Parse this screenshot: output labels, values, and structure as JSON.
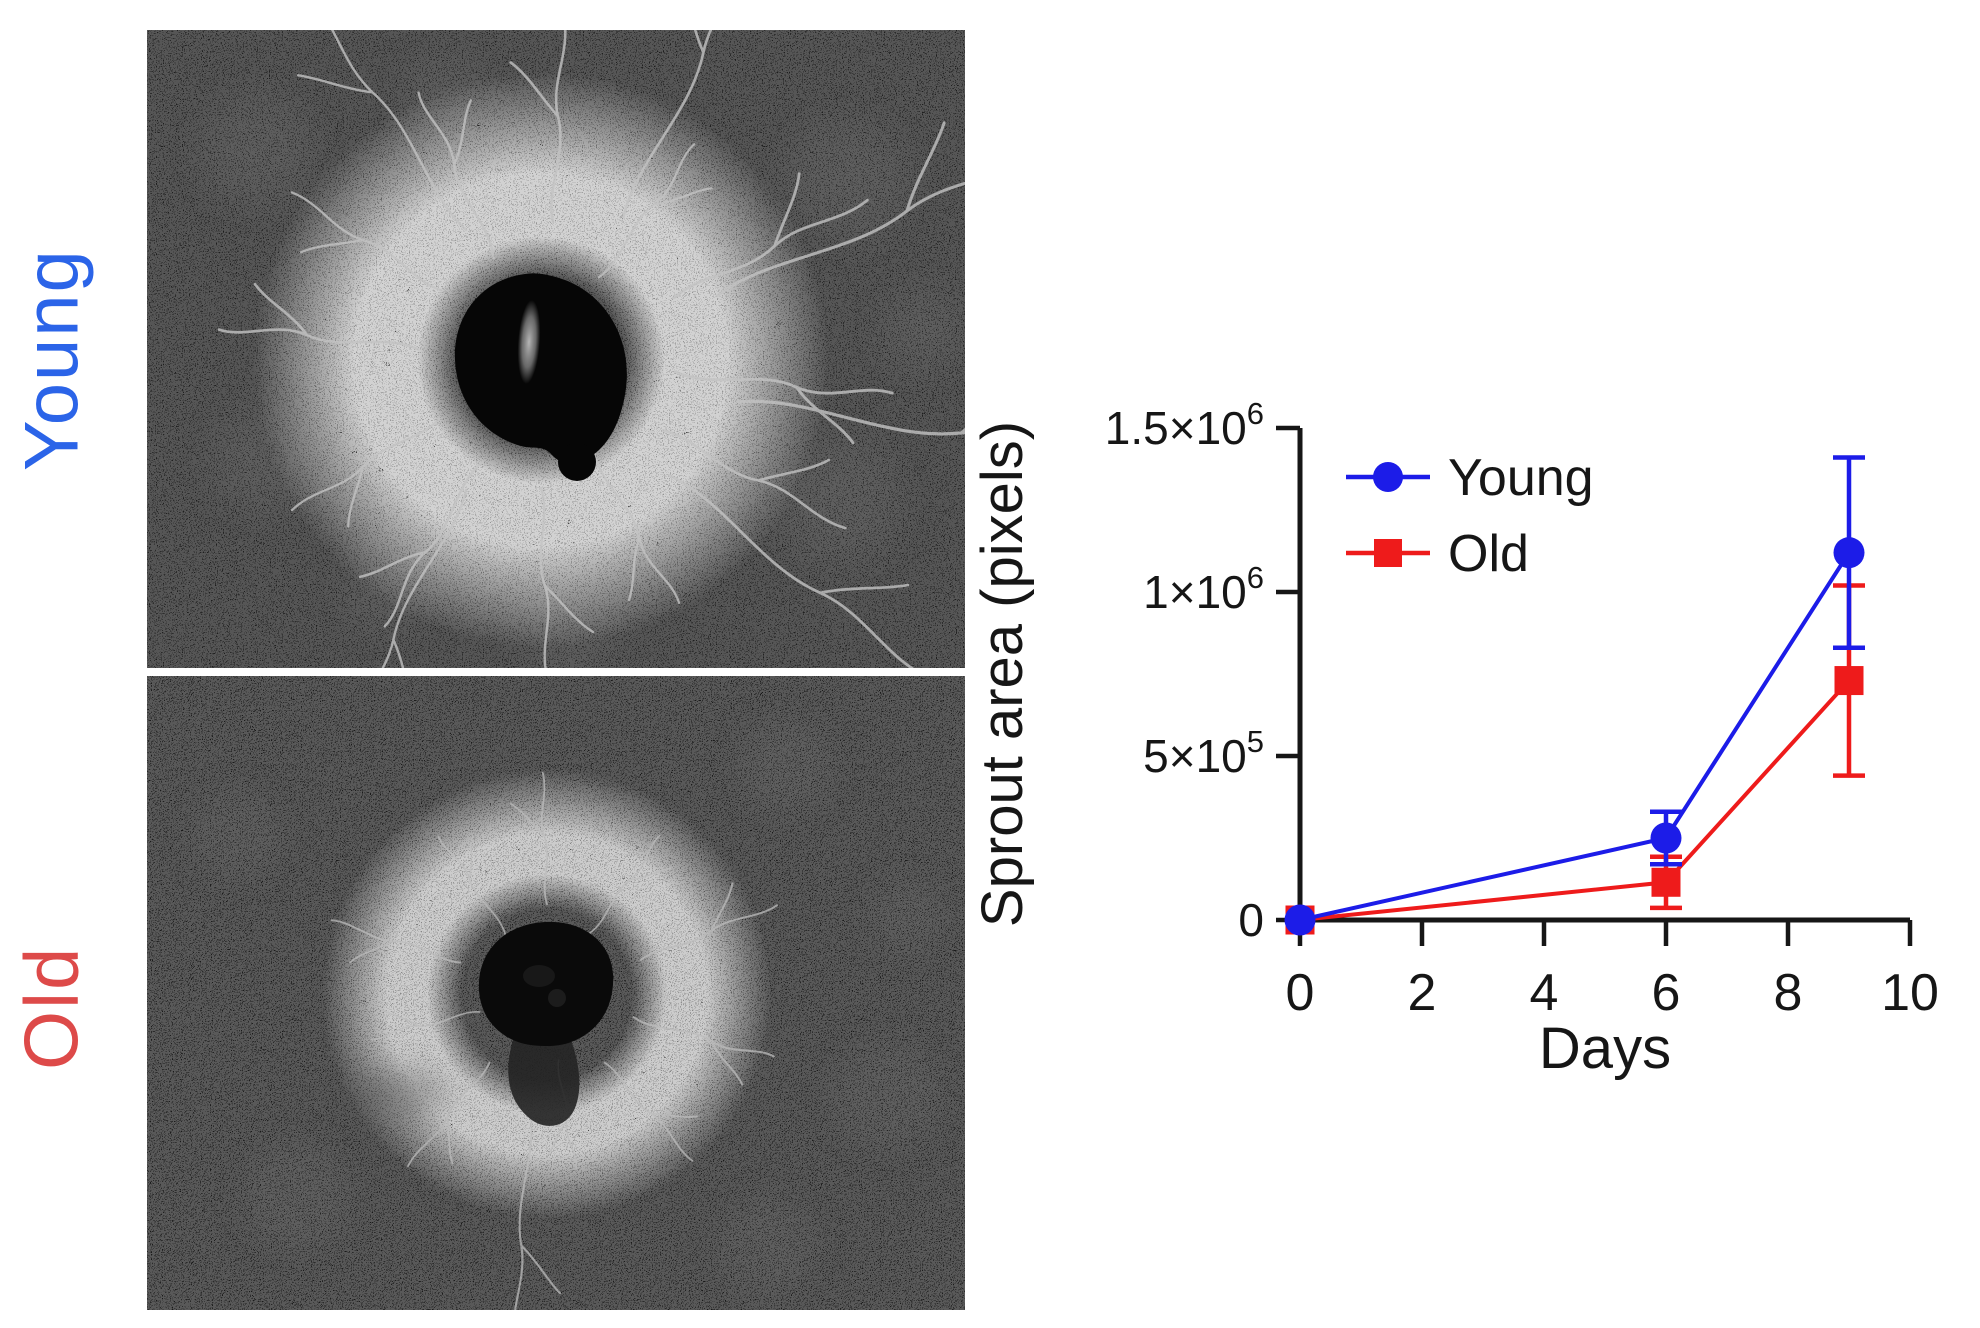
{
  "figure": {
    "background": "#ffffff",
    "micrographs": [
      {
        "label": "Young",
        "label_color": "#2b64e8"
      },
      {
        "label": "Old",
        "label_color": "#dd4a49"
      }
    ]
  },
  "chart_data": {
    "type": "line",
    "title": "",
    "xlabel": "Days",
    "ylabel": "Sprout area (pixels)",
    "xlim": [
      0,
      10
    ],
    "ylim": [
      0,
      1500000
    ],
    "grid": false,
    "legend_position": "upper-left-inside",
    "axis_color": "#161616",
    "x_ticks": [
      {
        "v": 0,
        "label": "0"
      },
      {
        "v": 2,
        "label": "2"
      },
      {
        "v": 4,
        "label": "4"
      },
      {
        "v": 6,
        "label": "6"
      },
      {
        "v": 8,
        "label": "8"
      },
      {
        "v": 10,
        "label": "10"
      }
    ],
    "y_ticks": [
      {
        "v": 0,
        "mantissa": "0",
        "exponent": ""
      },
      {
        "v": 500000,
        "mantissa": "5×10",
        "exponent": "5"
      },
      {
        "v": 1000000,
        "mantissa": "1×10",
        "exponent": "6"
      },
      {
        "v": 1500000,
        "mantissa": "1.5×10",
        "exponent": "6"
      }
    ],
    "series": [
      {
        "name": "Young",
        "color": "#1c1ce8",
        "marker": "circle",
        "x": [
          0,
          6,
          9
        ],
        "y": [
          0,
          250000,
          1120000
        ],
        "yerr": [
          0,
          80000,
          290000
        ]
      },
      {
        "name": "Old",
        "color": "#ee1b1b",
        "marker": "square",
        "x": [
          0,
          6,
          9
        ],
        "y": [
          0,
          115000,
          730000
        ],
        "yerr": [
          0,
          78000,
          290000
        ]
      }
    ]
  }
}
